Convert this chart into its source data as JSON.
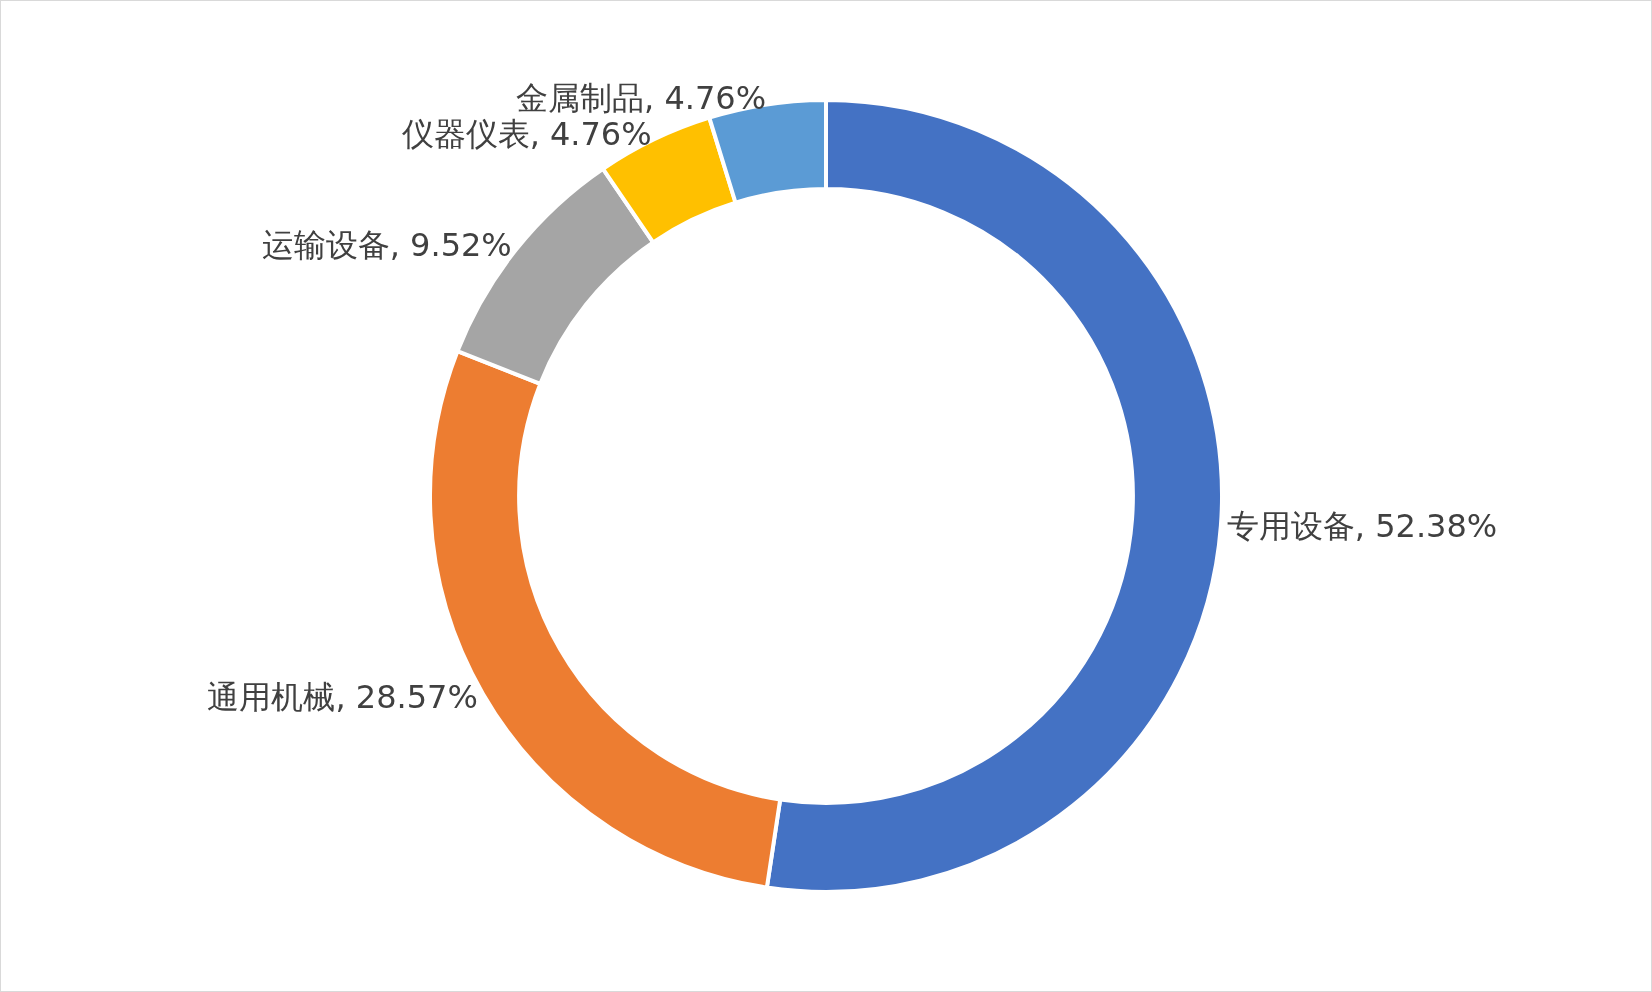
{
  "chart_data": {
    "type": "donut",
    "categories": [
      "专用设备",
      "通用机械",
      "运输设备",
      "仪器仪表",
      "金属制品"
    ],
    "values": [
      52.38,
      28.57,
      9.52,
      4.76,
      4.76
    ],
    "colors": [
      "#4472c4",
      "#ed7d31",
      "#a5a5a5",
      "#ffc000",
      "#5b9bd5"
    ],
    "value_labels": [
      "52.38%",
      "28.57%",
      "9.52%",
      "4.76%",
      "4.76%"
    ],
    "legend": false
  }
}
